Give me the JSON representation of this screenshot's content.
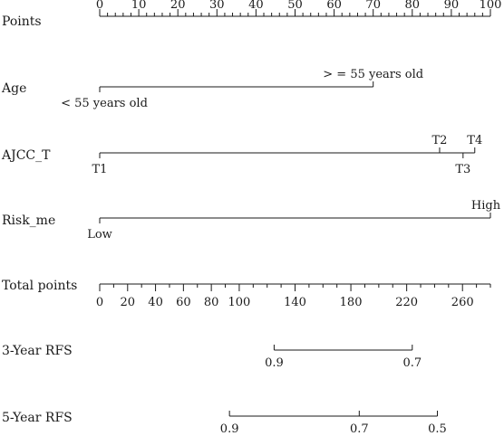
{
  "chart_data": {
    "type": "nomogram",
    "rows": [
      {
        "id": "points",
        "label": "Points",
        "kind": "scale",
        "min": 0,
        "max": 100,
        "major": [
          0,
          10,
          20,
          30,
          40,
          50,
          60,
          70,
          80,
          90,
          100
        ],
        "major_labels": [
          "0",
          "10",
          "20",
          "30",
          "40",
          "50",
          "60",
          "70",
          "80",
          "90",
          "100"
        ],
        "minor_step": 2,
        "labels_side": "above"
      },
      {
        "id": "age",
        "label": "Age",
        "kind": "factor",
        "levels": [
          {
            "label": "< 55 years old",
            "points": 0,
            "side": "below"
          },
          {
            "label": "> = 55 years old",
            "points": 70,
            "side": "above"
          }
        ]
      },
      {
        "id": "ajcc_t",
        "label": "AJCC_T",
        "kind": "factor",
        "levels": [
          {
            "label": "T1",
            "points": 0,
            "side": "below"
          },
          {
            "label": "T2",
            "points": 87,
            "side": "above"
          },
          {
            "label": "T3",
            "points": 93,
            "side": "below"
          },
          {
            "label": "T4",
            "points": 96,
            "side": "above"
          }
        ]
      },
      {
        "id": "risk",
        "label": "Risk_me",
        "kind": "factor",
        "levels": [
          {
            "label": "Low",
            "points": 0,
            "side": "below"
          },
          {
            "label": "High",
            "points": 100,
            "side": "above"
          }
        ]
      },
      {
        "id": "total",
        "label": "Total points",
        "kind": "total-scale",
        "min": 0,
        "max": 280,
        "major": [
          0,
          20,
          40,
          60,
          80,
          100,
          140,
          180,
          220,
          260
        ],
        "major_labels": [
          "0",
          "20",
          "40",
          "60",
          "80",
          "100",
          "140",
          "180",
          "220",
          "260"
        ],
        "minor_step": 10
      },
      {
        "id": "rfs3",
        "label": "3-Year RFS",
        "kind": "probability",
        "total_start": 125,
        "total_end": 224,
        "ticks": [
          {
            "label": "0.9",
            "total": 125
          },
          {
            "label": "0.7",
            "total": 224
          }
        ]
      },
      {
        "id": "rfs5",
        "label": "5-Year RFS",
        "kind": "probability",
        "total_start": 93,
        "total_end": 242,
        "ticks": [
          {
            "label": "0.9",
            "total": 93
          },
          {
            "label": "0.7",
            "total": 186
          },
          {
            "label": "0.5",
            "total": 242
          }
        ]
      }
    ]
  }
}
